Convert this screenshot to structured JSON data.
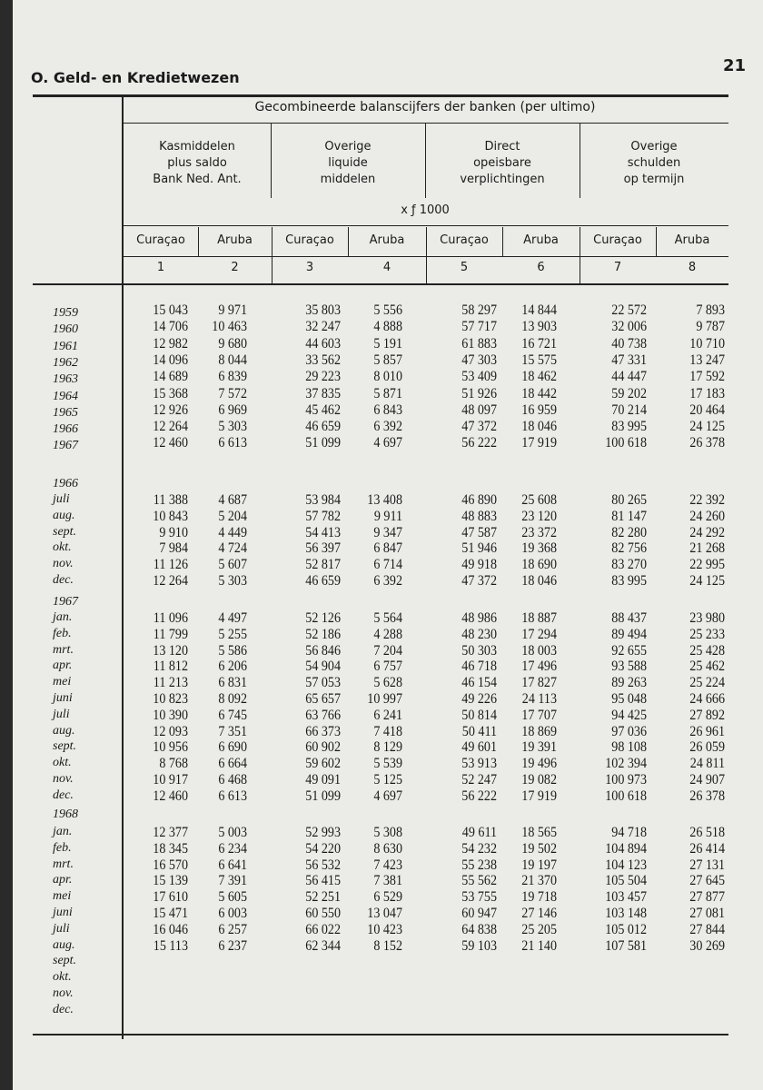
{
  "header": {
    "section": "O. Geld- en Kredietwezen",
    "page": "21"
  },
  "table": {
    "title": "Gecombineerde balanscijfers der banken (per ultimo)",
    "groups": [
      {
        "label": [
          "Kasmiddelen",
          "plus saldo",
          "Bank Ned. Ant."
        ]
      },
      {
        "label": [
          "Overige",
          "liquide",
          "middelen"
        ]
      },
      {
        "label": [
          "Direct",
          "opeisbare",
          "verplichtingen"
        ]
      },
      {
        "label": [
          "Overige",
          "schulden",
          "op termijn"
        ]
      }
    ],
    "unit": "x ƒ 1000",
    "subheaders": [
      "Curaçao",
      "Aruba",
      "Curaçao",
      "Aruba",
      "Curaçao",
      "Aruba",
      "Curaçao",
      "Aruba"
    ],
    "column_numbers": [
      "1",
      "2",
      "3",
      "4",
      "5",
      "6",
      "7",
      "8"
    ],
    "annual": [
      {
        "label": "1959",
        "values": [
          "15 043",
          "9 971",
          "35 803",
          "5 556",
          "58 297",
          "14 844",
          "22 572",
          "7 893"
        ]
      },
      {
        "label": "1960",
        "values": [
          "14 706",
          "10 463",
          "32 247",
          "4 888",
          "57 717",
          "13 903",
          "32 006",
          "9 787"
        ]
      },
      {
        "label": "1961",
        "values": [
          "12 982",
          "9 680",
          "44 603",
          "5 191",
          "61 883",
          "16 721",
          "40 738",
          "10 710"
        ]
      },
      {
        "label": "1962",
        "values": [
          "14 096",
          "8 044",
          "33 562",
          "5 857",
          "47 303",
          "15 575",
          "47 331",
          "13 247"
        ]
      },
      {
        "label": "1963",
        "values": [
          "14 689",
          "6 839",
          "29 223",
          "8 010",
          "53 409",
          "18 462",
          "44 447",
          "17 592"
        ]
      },
      {
        "label": "1964",
        "values": [
          "15 368",
          "7 572",
          "37 835",
          "5 871",
          "51 926",
          "18 442",
          "59 202",
          "17 183"
        ]
      },
      {
        "label": "1965",
        "values": [
          "12 926",
          "6 969",
          "45 462",
          "6 843",
          "48 097",
          "16 959",
          "70 214",
          "20 464"
        ]
      },
      {
        "label": "1966",
        "values": [
          "12 264",
          "5 303",
          "46 659",
          "6 392",
          "47 372",
          "18 046",
          "83 995",
          "24 125"
        ]
      },
      {
        "label": "1967",
        "values": [
          "12 460",
          "6 613",
          "51 099",
          "4 697",
          "56 222",
          "17 919",
          "100 618",
          "26 378"
        ]
      }
    ],
    "monthly": [
      {
        "year": "1966",
        "rows": [
          {
            "label": "juli",
            "values": [
              "11 388",
              "4 687",
              "53 984",
              "13 408",
              "46 890",
              "25 608",
              "80 265",
              "22 392"
            ]
          },
          {
            "label": "aug.",
            "values": [
              "10 843",
              "5 204",
              "57 782",
              "9 911",
              "48 883",
              "23 120",
              "81 147",
              "24 260"
            ]
          },
          {
            "label": "sept.",
            "values": [
              "9 910",
              "4 449",
              "54 413",
              "9 347",
              "47 587",
              "23 372",
              "82 280",
              "24 292"
            ]
          },
          {
            "label": "okt.",
            "values": [
              "7 984",
              "4 724",
              "56 397",
              "6 847",
              "51 946",
              "19 368",
              "82 756",
              "21 268"
            ]
          },
          {
            "label": "nov.",
            "values": [
              "11 126",
              "5 607",
              "52 817",
              "6 714",
              "49 918",
              "18 690",
              "83 270",
              "22 995"
            ]
          },
          {
            "label": "dec.",
            "values": [
              "12 264",
              "5 303",
              "46 659",
              "6 392",
              "47 372",
              "18 046",
              "83 995",
              "24 125"
            ]
          }
        ]
      },
      {
        "year": "1967",
        "rows": [
          {
            "label": "jan.",
            "values": [
              "11 096",
              "4 497",
              "52 126",
              "5 564",
              "48 986",
              "18 887",
              "88 437",
              "23 980"
            ]
          },
          {
            "label": "feb.",
            "values": [
              "11 799",
              "5 255",
              "52 186",
              "4 288",
              "48 230",
              "17 294",
              "89 494",
              "25 233"
            ]
          },
          {
            "label": "mrt.",
            "values": [
              "13 120",
              "5 586",
              "56 846",
              "7 204",
              "50 303",
              "18 003",
              "92 655",
              "25 428"
            ]
          },
          {
            "label": "apr.",
            "values": [
              "11 812",
              "6 206",
              "54 904",
              "6 757",
              "46 718",
              "17 496",
              "93 588",
              "25 462"
            ]
          },
          {
            "label": "mei",
            "values": [
              "11 213",
              "6 831",
              "57 053",
              "5 628",
              "46 154",
              "17 827",
              "89 263",
              "25 224"
            ]
          },
          {
            "label": "juni",
            "values": [
              "10 823",
              "8 092",
              "65 657",
              "10 997",
              "49 226",
              "24 113",
              "95 048",
              "24 666"
            ]
          },
          {
            "label": "juli",
            "values": [
              "10 390",
              "6 745",
              "63 766",
              "6 241",
              "50 814",
              "17 707",
              "94 425",
              "27 892"
            ]
          },
          {
            "label": "aug.",
            "values": [
              "12 093",
              "7 351",
              "66 373",
              "7 418",
              "50 411",
              "18 869",
              "97 036",
              "26 961"
            ]
          },
          {
            "label": "sept.",
            "values": [
              "10 956",
              "6 690",
              "60 902",
              "8 129",
              "49 601",
              "19 391",
              "98 108",
              "26 059"
            ]
          },
          {
            "label": "okt.",
            "values": [
              "8 768",
              "6 664",
              "59 602",
              "5 539",
              "53 913",
              "19 496",
              "102 394",
              "24 811"
            ]
          },
          {
            "label": "nov.",
            "values": [
              "10 917",
              "6 468",
              "49 091",
              "5 125",
              "52 247",
              "19 082",
              "100 973",
              "24 907"
            ]
          },
          {
            "label": "dec.",
            "values": [
              "12 460",
              "6 613",
              "51 099",
              "4 697",
              "56 222",
              "17 919",
              "100 618",
              "26 378"
            ]
          }
        ]
      },
      {
        "year": "1968",
        "rows": [
          {
            "label": "jan.",
            "values": [
              "12 377",
              "5 003",
              "52 993",
              "5 308",
              "49 611",
              "18 565",
              "94 718",
              "26 518"
            ]
          },
          {
            "label": "feb.",
            "values": [
              "18 345",
              "6 234",
              "54 220",
              "8 630",
              "54 232",
              "19 502",
              "104 894",
              "26 414"
            ]
          },
          {
            "label": "mrt.",
            "values": [
              "16 570",
              "6 641",
              "56 532",
              "7 423",
              "55 238",
              "19 197",
              "104 123",
              "27 131"
            ]
          },
          {
            "label": "apr.",
            "values": [
              "15 139",
              "7 391",
              "56 415",
              "7 381",
              "55 562",
              "21 370",
              "105 504",
              "27 645"
            ]
          },
          {
            "label": "mei",
            "values": [
              "17 610",
              "5 605",
              "52 251",
              "6 529",
              "53 755",
              "19 718",
              "103 457",
              "27 877"
            ]
          },
          {
            "label": "juni",
            "values": [
              "15 471",
              "6 003",
              "60 550",
              "13 047",
              "60 947",
              "27 146",
              "103 148",
              "27 081"
            ]
          },
          {
            "label": "juli",
            "values": [
              "16 046",
              "6 257",
              "66 022",
              "10 423",
              "64 838",
              "25 205",
              "105 012",
              "27 844"
            ]
          },
          {
            "label": "aug.",
            "values": [
              "15 113",
              "6 237",
              "62 344",
              "8 152",
              "59 103",
              "21 140",
              "107 581",
              "30 269"
            ]
          },
          {
            "label": "sept.",
            "values": []
          },
          {
            "label": "okt.",
            "values": []
          },
          {
            "label": "nov.",
            "values": []
          },
          {
            "label": "dec.",
            "values": []
          }
        ]
      }
    ]
  }
}
